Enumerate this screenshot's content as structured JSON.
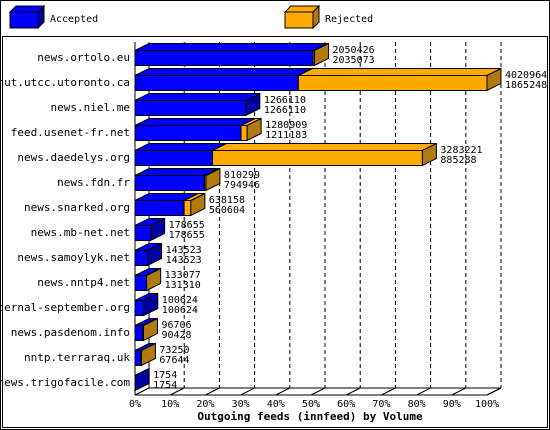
{
  "chart_data": {
    "type": "bar3d",
    "xlabel": "Outgoing feeds (innfeed) by Volume",
    "categories": [
      "news.ortolo.eu",
      "nut.utcc.utoronto.ca",
      "news.niel.me",
      "feed.usenet-fr.net",
      "news.daedelys.org",
      "news.fdn.fr",
      "news.snarked.org",
      "news.mb-net.net",
      "news.samoylyk.net",
      "news.nntp4.net",
      "eternal-september.org",
      "news.pasdenom.info",
      "nntp.terraraq.uk",
      "news.trigofacile.com"
    ],
    "totals": [
      2050426,
      4020964,
      1266110,
      1280909,
      3283221,
      810299,
      638158,
      178655,
      143523,
      133077,
      100624,
      96706,
      73250,
      1754
    ],
    "series": [
      {
        "name": "Accepted",
        "color": "#0000ff",
        "values": [
          2035073,
          1865248,
          1266110,
          1211183,
          885288,
          794946,
          560604,
          178655,
          143523,
          131310,
          100624,
          90428,
          67644,
          1754
        ]
      },
      {
        "name": "Rejected",
        "color": "#ffaa00"
      }
    ],
    "xlim": [
      0,
      100
    ],
    "xticks": [
      {
        "value": 0,
        "label": "0%"
      },
      {
        "value": 10,
        "label": "10%"
      },
      {
        "value": 20,
        "label": "20%"
      },
      {
        "value": 30,
        "label": "30%"
      },
      {
        "value": 40,
        "label": "40%"
      },
      {
        "value": 50,
        "label": "50%"
      },
      {
        "value": 60,
        "label": "60%"
      },
      {
        "value": 70,
        "label": "70%"
      },
      {
        "value": 80,
        "label": "80%"
      },
      {
        "value": 90,
        "label": "90%"
      },
      {
        "value": 100,
        "label": "100%"
      }
    ],
    "grid": true
  }
}
